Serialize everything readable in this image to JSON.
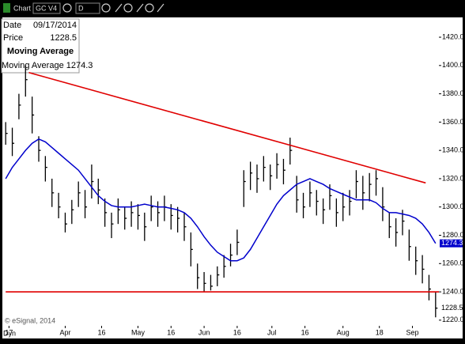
{
  "toolbar": {
    "title": "Chart",
    "symbol": "GC V4",
    "interval": "D"
  },
  "footer": {
    "mode": "Dyn",
    "credit": "© eSignal, 2014"
  },
  "info": {
    "date_label": "Date",
    "date": "09/17/2014",
    "price_label": "Price"
  },
  "chart_data": {
    "type": "ohlc",
    "x": [
      0,
      2,
      4,
      6,
      8,
      10,
      12,
      14,
      16,
      18,
      20,
      22,
      24,
      26,
      28,
      30,
      32,
      34,
      36,
      38,
      40,
      42,
      44,
      46,
      48,
      50,
      52,
      54,
      56,
      58,
      60,
      62,
      64,
      66,
      68,
      70,
      72,
      74,
      76,
      78,
      80,
      82,
      84,
      86,
      88,
      90,
      92,
      94,
      96,
      98,
      100,
      102,
      104,
      106,
      108,
      110,
      112,
      114,
      116,
      118,
      120,
      122,
      124,
      126,
      128,
      130
    ],
    "high": [
      1360,
      1356,
      1380,
      1400,
      1378,
      1350,
      1336,
      1320,
      1310,
      1296,
      1305,
      1318,
      1312,
      1330,
      1320,
      1306,
      1296,
      1306,
      1300,
      1304,
      1302,
      1296,
      1308,
      1304,
      1308,
      1302,
      1300,
      1296,
      1282,
      1260,
      1254,
      1252,
      1258,
      1266,
      1274,
      1284,
      1326,
      1332,
      1330,
      1336,
      1330,
      1338,
      1334,
      1349,
      1322,
      1310,
      1318,
      1312,
      1306,
      1316,
      1306,
      1310,
      1312,
      1326,
      1322,
      1324,
      1326,
      1314,
      1296,
      1292,
      1298,
      1284,
      1272,
      1266,
      1252,
      1240
    ],
    "low": [
      1344,
      1336,
      1362,
      1378,
      1352,
      1332,
      1318,
      1300,
      1292,
      1282,
      1288,
      1300,
      1292,
      1306,
      1302,
      1286,
      1278,
      1288,
      1284,
      1286,
      1284,
      1276,
      1290,
      1286,
      1290,
      1284,
      1282,
      1276,
      1258,
      1242,
      1240,
      1241,
      1244,
      1250,
      1258,
      1266,
      1300,
      1312,
      1310,
      1318,
      1312,
      1320,
      1316,
      1330,
      1296,
      1292,
      1300,
      1294,
      1288,
      1298,
      1286,
      1290,
      1294,
      1306,
      1298,
      1304,
      1308,
      1290,
      1278,
      1272,
      1280,
      1262,
      1252,
      1246,
      1234,
      1222
    ],
    "close": [
      1352,
      1345,
      1372,
      1390,
      1365,
      1340,
      1328,
      1310,
      1300,
      1288,
      1298,
      1310,
      1300,
      1318,
      1312,
      1296,
      1288,
      1298,
      1292,
      1296,
      1294,
      1286,
      1300,
      1296,
      1300,
      1294,
      1292,
      1286,
      1270,
      1250,
      1246,
      1244,
      1252,
      1258,
      1266,
      1275,
      1318,
      1324,
      1320,
      1328,
      1322,
      1330,
      1326,
      1340,
      1305,
      1300,
      1310,
      1304,
      1298,
      1308,
      1296,
      1300,
      1304,
      1318,
      1310,
      1316,
      1320,
      1300,
      1286,
      1282,
      1290,
      1272,
      1262,
      1256,
      1242,
      1228.5
    ],
    "bar_color": "#000000",
    "series": [
      {
        "name": "Moving Average",
        "color": "#0000cc",
        "values": [
          1320,
          1328,
          1334,
          1340,
          1345,
          1348,
          1346,
          1342,
          1338,
          1334,
          1330,
          1326,
          1320,
          1314,
          1308,
          1304,
          1301,
          1300,
          1300,
          1300,
          1301,
          1302,
          1301,
          1300,
          1300,
          1299,
          1298,
          1296,
          1292,
          1286,
          1279,
          1273,
          1268,
          1265,
          1262,
          1262,
          1264,
          1270,
          1278,
          1286,
          1294,
          1302,
          1308,
          1312,
          1316,
          1318,
          1320,
          1318,
          1316,
          1313,
          1311,
          1309,
          1307,
          1305,
          1305,
          1305,
          1303,
          1299,
          1296,
          1296,
          1295,
          1294,
          1292,
          1288,
          1282,
          1274.3
        ]
      }
    ],
    "trendlines": [
      {
        "color": "#e00000",
        "x": [
          7,
          127
        ],
        "y": [
          1395,
          1317
        ]
      },
      {
        "color": "#e00000",
        "x": [
          0,
          131
        ],
        "y": [
          1240,
          1240
        ]
      }
    ],
    "xlim": [
      -1,
      131
    ],
    "xticks": [
      {
        "value": 1,
        "label": "17"
      },
      {
        "value": 18,
        "label": "Apr"
      },
      {
        "value": 29,
        "label": "16"
      },
      {
        "value": 40,
        "label": "May"
      },
      {
        "value": 50,
        "label": "16"
      },
      {
        "value": 60,
        "label": "Jun"
      },
      {
        "value": 70,
        "label": "16"
      },
      {
        "value": 80.5,
        "label": "Jul"
      },
      {
        "value": 90.5,
        "label": "16"
      },
      {
        "value": 102,
        "label": "Aug"
      },
      {
        "value": 113,
        "label": "18"
      },
      {
        "value": 123,
        "label": "Sep"
      }
    ],
    "ylim": [
      1216,
      1434
    ],
    "yticks": [
      {
        "value": 1220,
        "label": "1220.0"
      },
      {
        "value": 1240,
        "label": "1240.0"
      },
      {
        "value": 1260,
        "label": "1260.0"
      },
      {
        "value": 1280,
        "label": "1280.0"
      },
      {
        "value": 1300,
        "label": "1300.0"
      },
      {
        "value": 1320,
        "label": "1320.0"
      },
      {
        "value": 1340,
        "label": "1340.0"
      },
      {
        "value": 1360,
        "label": "1360.0"
      },
      {
        "value": 1380,
        "label": "1380.0"
      },
      {
        "value": 1400,
        "label": "1400.0"
      },
      {
        "value": 1420,
        "label": "1420.0"
      }
    ]
  }
}
